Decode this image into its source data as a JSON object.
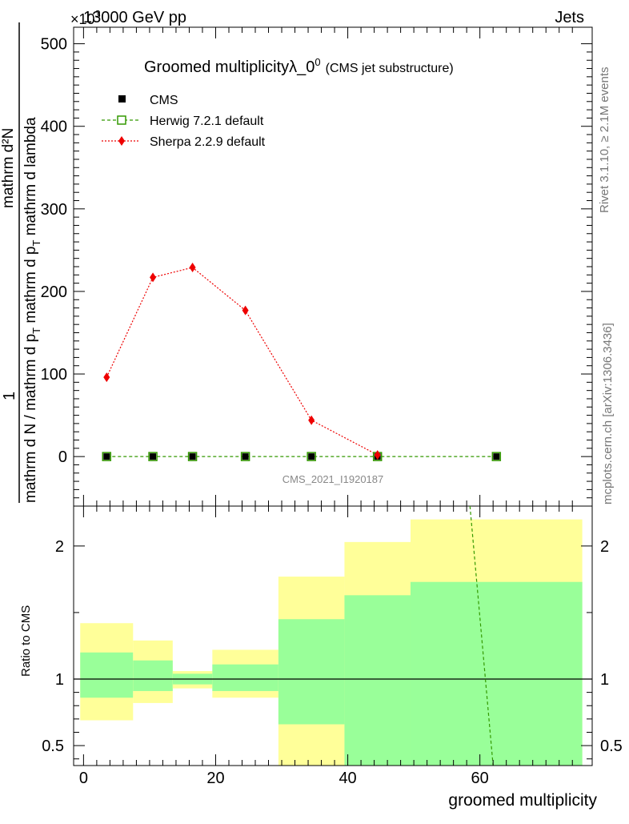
{
  "header": {
    "left": "13000 GeV pp",
    "right": "Jets",
    "exponent": "×10",
    "exponent_power": "3"
  },
  "side_labels": {
    "top": "Rivet 3.1.10, ≥ 2.1M events",
    "bottom": "mcplots.cern.ch [arXiv:1306.3436]"
  },
  "main_plot": {
    "title": "Groomed multiplicityλ_0",
    "title_sup": "0",
    "title_suffix": "(CMS jet substructure)",
    "ylabel_numerator": "mathrm d²N",
    "ylabel_denominator": "mathrm d N / mathrm d p",
    "ylabel_denominator_sub": "T",
    "ylabel_denominator_rest": " mathrm d p",
    "ylabel_denominator_sub2": "T",
    "ylabel_denominator_end": " mathrm d lambda",
    "ylabel_one": "1",
    "watermark": "CMS_2021_I1920187"
  },
  "legend": [
    {
      "name": "CMS",
      "color": "#000000",
      "style": "square-filled"
    },
    {
      "name": "Herwig 7.2.1 default",
      "color": "#339900",
      "style": "square-open-dashed"
    },
    {
      "name": "Sherpa 2.2.9 default",
      "color": "#ee0000",
      "style": "diamond-dotted"
    }
  ],
  "ratio_plot": {
    "ylabel": "Ratio to CMS",
    "xlabel": "groomed multiplicity"
  },
  "chart_data": [
    {
      "type": "line",
      "title": "Groomed multiplicityλ_0^0 (CMS jet substructure)",
      "xlim": [
        -1.5,
        77
      ],
      "ylim": [
        -60,
        520
      ],
      "y_scale_factor": 1000,
      "yticks": [
        0,
        100,
        200,
        300,
        400,
        500
      ],
      "series": [
        {
          "name": "CMS",
          "x": [
            3.5,
            10.5,
            16.5,
            24.5,
            34.5,
            44.5,
            62.5
          ],
          "values": [
            0,
            0,
            0,
            0,
            0,
            0,
            0
          ]
        },
        {
          "name": "Herwig 7.2.1 default",
          "x": [
            3.5,
            10.5,
            16.5,
            24.5,
            34.5,
            44.5,
            62.5
          ],
          "values": [
            0,
            0,
            0,
            0,
            0,
            0,
            0
          ]
        },
        {
          "name": "Sherpa 2.2.9 default",
          "x": [
            3.5,
            10.5,
            16.5,
            24.5,
            34.5,
            44.5
          ],
          "values": [
            96,
            217,
            229,
            177,
            44,
            2
          ]
        }
      ]
    },
    {
      "type": "area",
      "ylabel": "Ratio to CMS",
      "xlabel": "groomed multiplicity",
      "xlim": [
        -1.5,
        77
      ],
      "ylim": [
        0.35,
        2.3
      ],
      "xticks": [
        0,
        20,
        40,
        60
      ],
      "yticks": [
        0.5,
        1,
        2
      ],
      "ytick_labels": [
        "0.5",
        "1",
        "2"
      ],
      "reference_line": 1,
      "bands": [
        {
          "x_low": -0.5,
          "x_high": 7.5,
          "yellow": [
            0.69,
            1.42
          ],
          "green": [
            0.86,
            1.2
          ]
        },
        {
          "x_low": 7.5,
          "x_high": 13.5,
          "yellow": [
            0.82,
            1.29
          ],
          "green": [
            0.91,
            1.14
          ]
        },
        {
          "x_low": 13.5,
          "x_high": 19.5,
          "yellow": [
            0.93,
            1.06
          ],
          "green": [
            0.96,
            1.04
          ]
        },
        {
          "x_low": 19.5,
          "x_high": 29.5,
          "yellow": [
            0.86,
            1.22
          ],
          "green": [
            0.91,
            1.11
          ]
        },
        {
          "x_low": 29.5,
          "x_high": 39.5,
          "yellow": [
            0.35,
            1.77
          ],
          "green": [
            0.66,
            1.45
          ]
        },
        {
          "x_low": 39.5,
          "x_high": 49.5,
          "yellow": [
            0.43,
            2.03
          ],
          "green": [
            0.35,
            1.63
          ]
        },
        {
          "x_low": 49.5,
          "x_high": 75.5,
          "yellow": [
            0.35,
            2.2
          ],
          "green": [
            0.35,
            1.73
          ]
        }
      ],
      "herwig_ratio_line": {
        "name": "Herwig 7.2.1 default",
        "x": [
          58.5,
          62
        ],
        "values": [
          2.3,
          0.35
        ]
      }
    }
  ]
}
